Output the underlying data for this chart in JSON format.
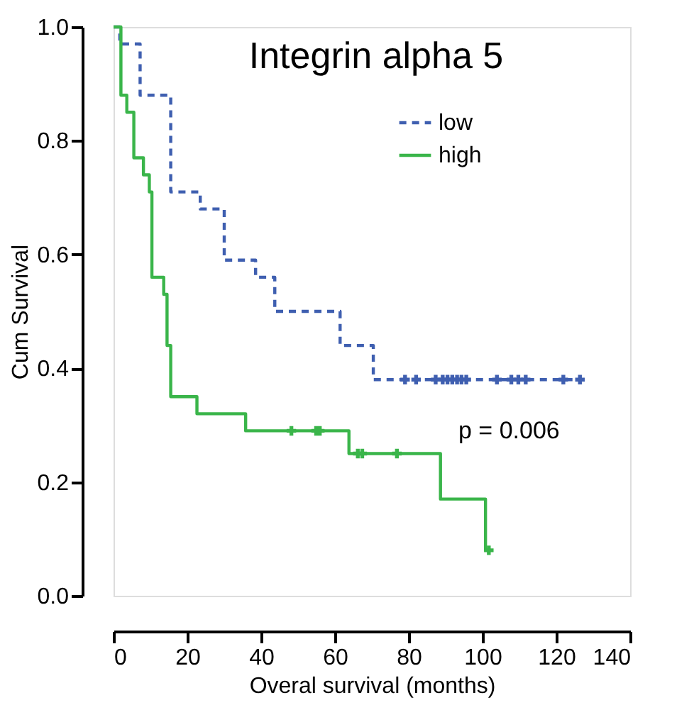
{
  "chart_data": {
    "type": "step",
    "title": "Integrin alpha 5",
    "xlabel": "Overal survival (months)",
    "ylabel": "Cum Survival",
    "xlim": [
      0,
      140
    ],
    "xticks": [
      0,
      20,
      40,
      60,
      80,
      100,
      120,
      140
    ],
    "ylim": [
      0,
      1
    ],
    "yticks": [
      {
        "value": 0,
        "label": "0.0"
      },
      {
        "value": 0.2,
        "label": "0.2"
      },
      {
        "value": 0.4,
        "label": "0.4"
      },
      {
        "value": 0.6,
        "label": "0.6"
      },
      {
        "value": 0.8,
        "label": "0.8"
      },
      {
        "value": 1,
        "label": "1.0"
      }
    ],
    "grid": false,
    "legend": "top right",
    "annotations": [
      "p = 0.006"
    ],
    "series": [
      {
        "name": "low",
        "color": "#3f5fb0",
        "line_style": "dashed",
        "x": [
          0,
          1.7,
          7.2,
          15.5,
          23.5,
          30,
          38.5,
          43.7,
          61.4,
          70.4,
          127.7
        ],
        "values": [
          1.0,
          0.97,
          0.88,
          0.71,
          0.68,
          0.59,
          0.56,
          0.5,
          0.44,
          0.38,
          0.38
        ]
      },
      {
        "name": "high",
        "color": "#3ab54a",
        "line_style": "solid",
        "x": [
          0,
          2,
          3.6,
          5.5,
          8.1,
          9.7,
          10.4,
          13.6,
          14.5,
          15.5,
          22.6,
          35.8,
          63.8,
          88.6,
          100.8,
          101.7
        ],
        "values": [
          1.0,
          0.88,
          0.85,
          0.77,
          0.74,
          0.71,
          0.56,
          0.53,
          0.44,
          0.35,
          0.32,
          0.29,
          0.25,
          0.17,
          0.08,
          0.08
        ]
      },
      {
        "type": "scatter",
        "marker": "cross",
        "color": "#3f5fb0",
        "x": [
          79,
          82,
          87.3,
          89.2,
          90.5,
          91.8,
          93.1,
          94.3,
          95.6,
          103.9,
          107.8,
          109.7,
          111.7,
          121.9,
          126.4
        ],
        "values": [
          0.38,
          0.38,
          0.38,
          0.38,
          0.38,
          0.38,
          0.38,
          0.38,
          0.38,
          0.38,
          0.38,
          0.38,
          0.38,
          0.38,
          0.38
        ]
      },
      {
        "type": "scatter",
        "marker": "cross",
        "color": "#3ab54a",
        "x": [
          48.2,
          54.9,
          55.9,
          66.2,
          67.4,
          76.8,
          101.7
        ],
        "values": [
          0.29,
          0.29,
          0.29,
          0.25,
          0.25,
          0.25,
          0.08
        ]
      }
    ]
  }
}
